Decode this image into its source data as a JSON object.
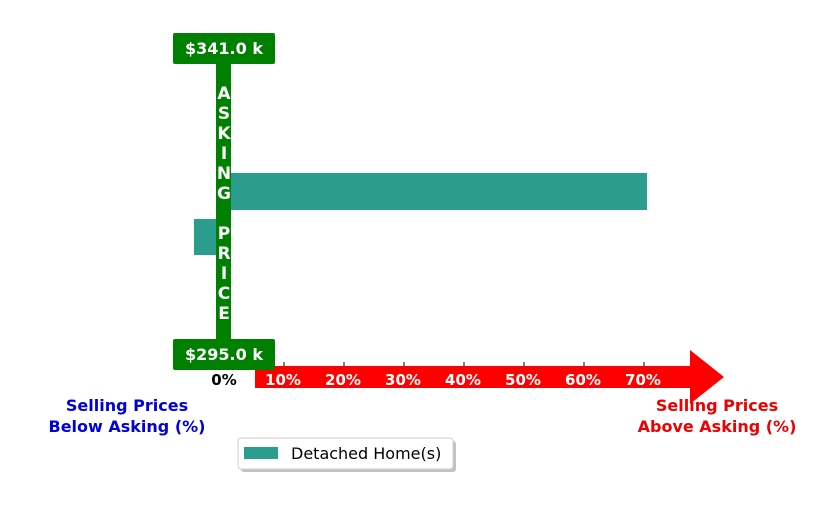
{
  "chart_data": {
    "type": "bar",
    "orientation": "horizontal",
    "title": "",
    "series": [
      {
        "name": "Detached Home(s)",
        "color": "#2a9d8f",
        "values": [
          -5,
          70.5
        ]
      }
    ],
    "categories": [
      "",
      ""
    ],
    "x_ticks": [
      "0%",
      "10%",
      "20%",
      "30%",
      "40%",
      "50%",
      "60%",
      "70%"
    ],
    "x_tick_values": [
      0,
      10,
      20,
      30,
      40,
      50,
      60,
      70
    ],
    "xlim": [
      -35,
      80
    ],
    "asking_price": {
      "label": "ASKING PRICE",
      "high": "$341.0 k",
      "low": "$295.0 k",
      "color": "#008000"
    },
    "left_label": [
      "Selling Prices",
      "Below Asking (%)"
    ],
    "right_label": [
      "Selling Prices",
      "Above Asking (%)"
    ],
    "left_label_color": "#0000dd",
    "right_label_color": "#ee0000",
    "arrow_color": "#ff0000",
    "legend": {
      "position": "bottom-center",
      "entries": [
        "Detached Home(s)"
      ]
    }
  }
}
